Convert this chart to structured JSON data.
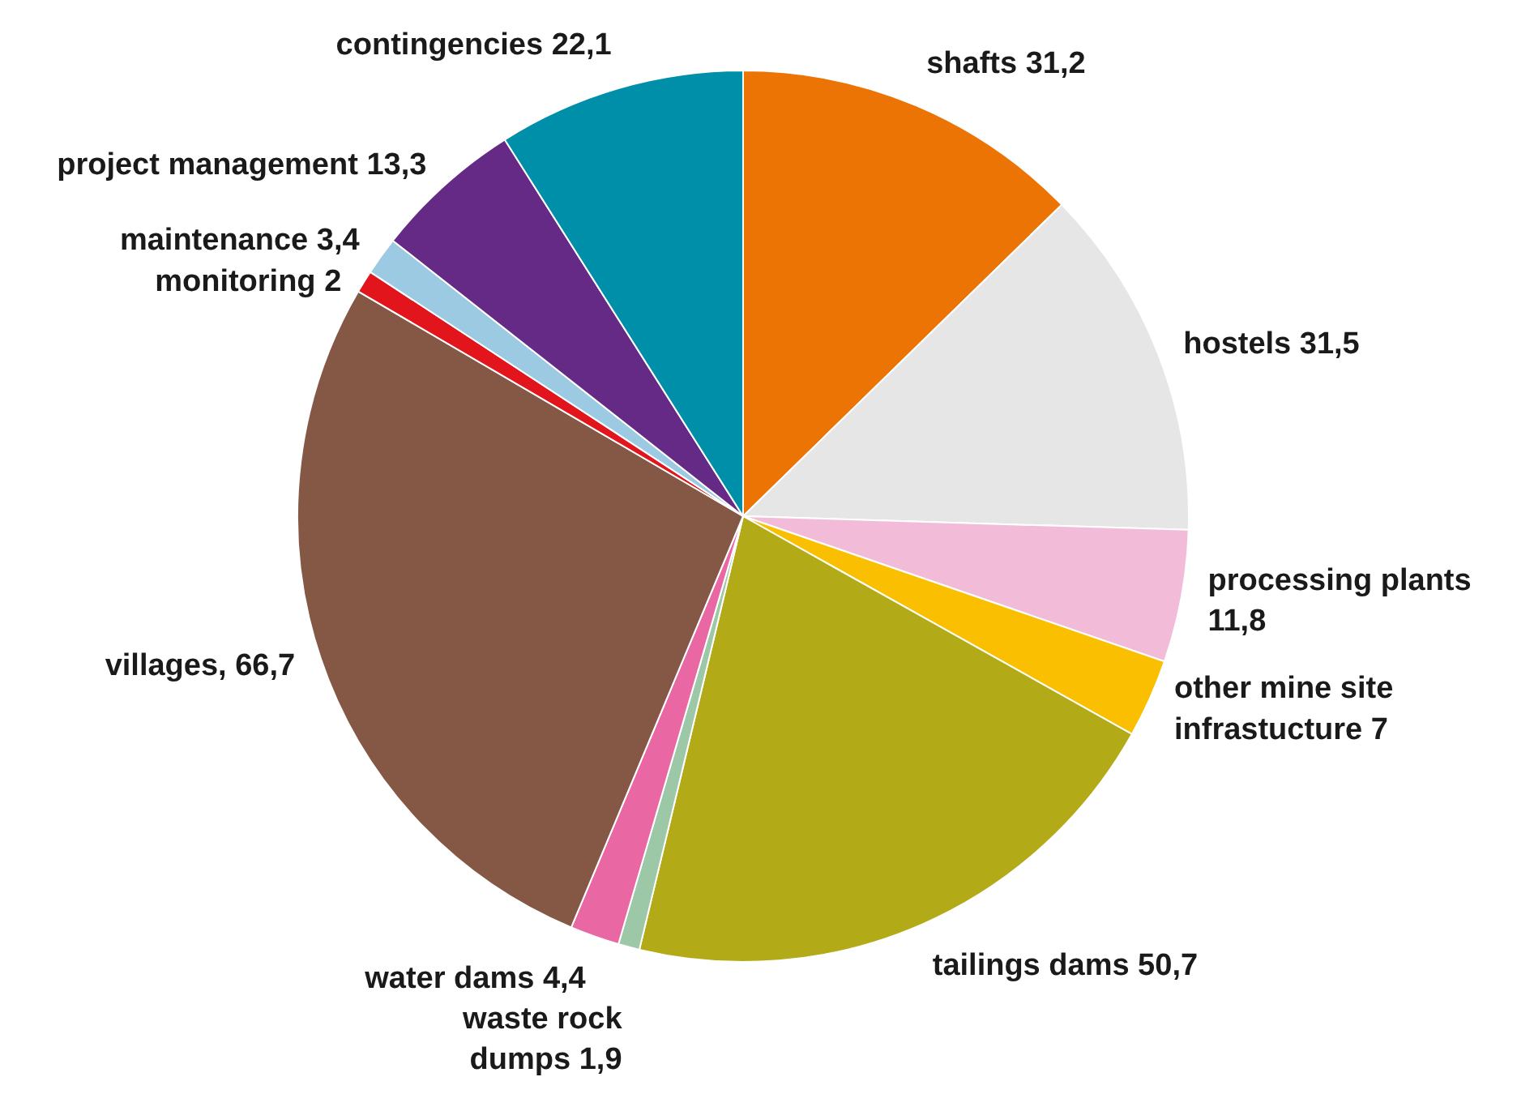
{
  "chart_data": {
    "type": "pie",
    "categories": [
      "shafts 31,2",
      "hostels 31,5",
      "processing plants\n11,8",
      "other mine site\ninfrastucture 7",
      "tailings dams 50,7",
      "waste rock\ndumps 1,9",
      "water dams 4,4",
      "villages, 66,7",
      "monitoring 2",
      "maintenance 3,4",
      "project management 13,3",
      "contingencies 22,1"
    ],
    "values": [
      31.2,
      31.5,
      11.8,
      7,
      50.7,
      1.9,
      4.4,
      66.7,
      2,
      3.4,
      13.3,
      22.1
    ],
    "colors": [
      "#ec7404",
      "#e6e6e6",
      "#f2bcd9",
      "#f9bf00",
      "#b3aa17",
      "#9cc8a8",
      "#e968a4",
      "#855745",
      "#e2141c",
      "#9ccae3",
      "#652a85",
      "#008fa8"
    ]
  }
}
